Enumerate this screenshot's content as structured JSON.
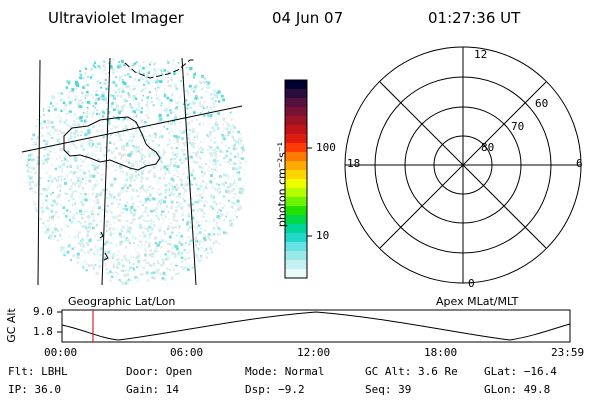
{
  "header": {
    "title": "Ultraviolet Imager",
    "date": "04 Jun 07",
    "time": "01:27:36 UT"
  },
  "colorbar": {
    "unit_label": "photon cm⁻²s⁻¹",
    "ticks": [
      "100",
      "10"
    ],
    "colors": [
      "#000033",
      "#2a0d3a",
      "#55103d",
      "#7a1236",
      "#9c1325",
      "#c0141a",
      "#e01c10",
      "#ff3a05",
      "#ff7a00",
      "#ffaa00",
      "#ffd500",
      "#eeff00",
      "#b6ff00",
      "#6cf500",
      "#22e000",
      "#00d84a",
      "#00d59a",
      "#22d7cc",
      "#66e2e2",
      "#9ae9e9",
      "#c4f1f1",
      "#e8fafa"
    ]
  },
  "polar": {
    "lat_labels": [
      "80",
      "70",
      "60"
    ],
    "mlt_labels": {
      "top": "12",
      "bottom": "0",
      "left": "18",
      "right": "6"
    }
  },
  "timeline": {
    "left_title": "Geographic Lat/Lon",
    "right_title": "Apex MLat/MLT",
    "axis_label": "GC Alt",
    "y_ticks": [
      "9.0",
      "1.8"
    ],
    "x_ticks": [
      "00:00",
      "06:00",
      "12:00",
      "18:00",
      "23:59"
    ],
    "current_time_fraction": 0.061
  },
  "status": {
    "flt": "Flt: LBHL",
    "door": "Door: Open",
    "mode": "Mode: Normal",
    "gc_alt": "GC Alt: 3.6 Re",
    "glat": "GLat: −16.4",
    "ip": "IP: 36.0",
    "gain": "Gain: 14",
    "dsp": "Dsp:   −9.2",
    "seq": "Seq: 39",
    "glon": "GLon:  49.8"
  }
}
